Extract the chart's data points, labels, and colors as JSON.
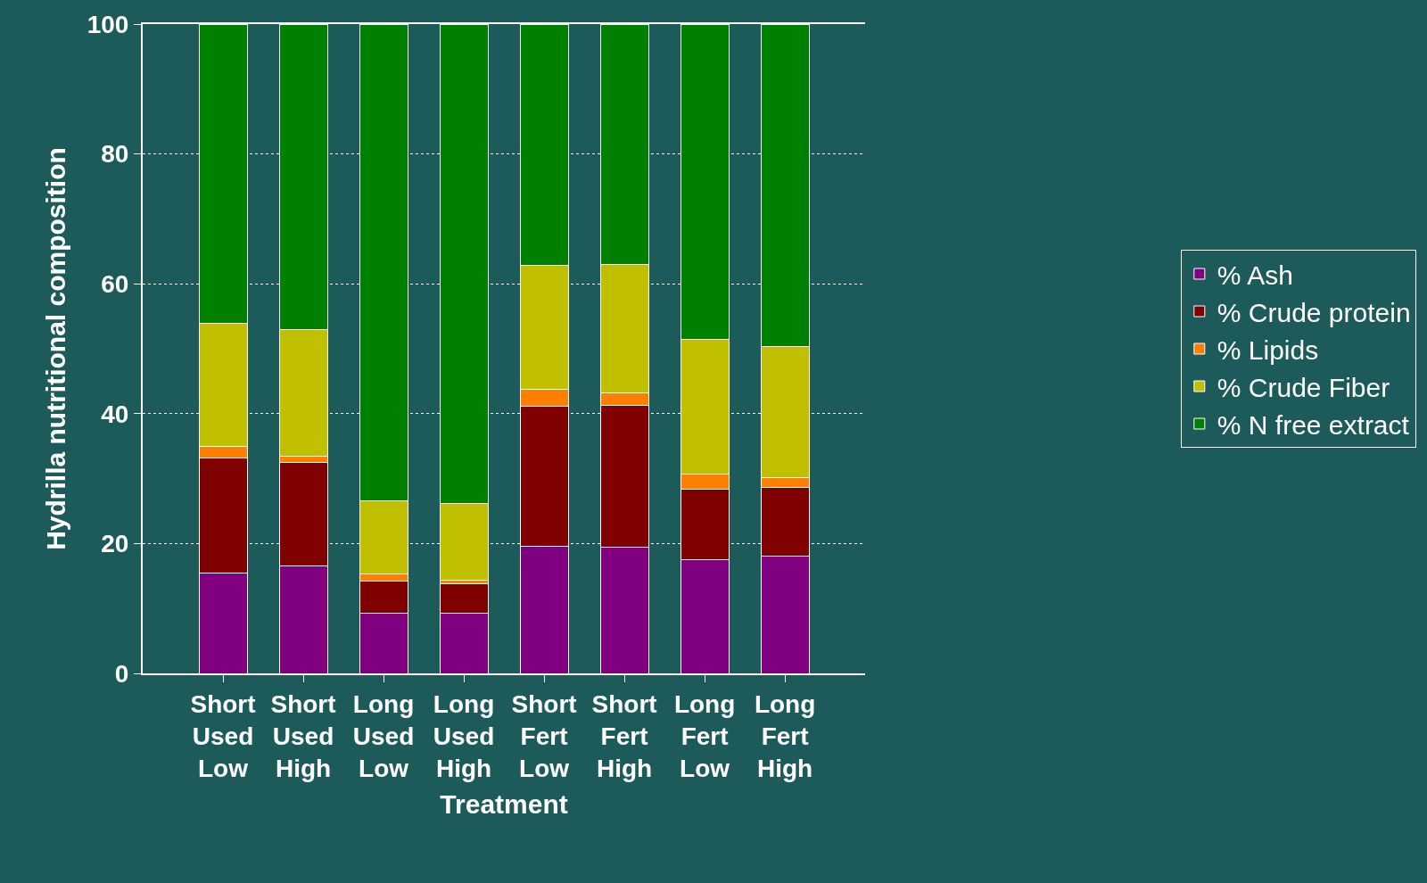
{
  "chart_data": {
    "type": "bar",
    "stacked": true,
    "xlabel": "Treatment",
    "ylabel": "Hydrilla nutritional composition",
    "categories": [
      "Short\nUsed\nLow",
      "Short\nUsed\nHigh",
      "Long\nUsed\nLow",
      "Long\nUsed\nHigh",
      "Short\nFert\nLow",
      "Short\nFert\nHigh",
      "Long\nFert\nLow",
      "Long\nFert\nHigh"
    ],
    "series": [
      {
        "name": "% Ash",
        "color": "#800080",
        "values": [
          15.4,
          16.5,
          9.3,
          9.3,
          19.6,
          19.5,
          17.5,
          18.1
        ]
      },
      {
        "name": "% Crude protein",
        "color": "#800000",
        "values": [
          17.8,
          16.0,
          4.9,
          4.5,
          21.6,
          21.8,
          10.9,
          10.5
        ]
      },
      {
        "name": "% Lipids",
        "color": "#ff8000",
        "values": [
          1.7,
          0.9,
          1.1,
          0.5,
          2.5,
          1.9,
          2.3,
          1.6
        ]
      },
      {
        "name": "% Crude Fiber",
        "color": "#c0c000",
        "values": [
          19.0,
          19.5,
          11.3,
          11.9,
          19.2,
          19.8,
          20.7,
          20.1
        ]
      },
      {
        "name": "% N free extract",
        "color": "#008000",
        "values": [
          46.1,
          47.1,
          73.4,
          73.8,
          37.1,
          37.0,
          48.6,
          49.7
        ]
      }
    ],
    "ylim": [
      0,
      100
    ],
    "yticks": [
      0,
      20,
      40,
      60,
      80,
      100
    ],
    "grid": "y",
    "legend": "right"
  }
}
